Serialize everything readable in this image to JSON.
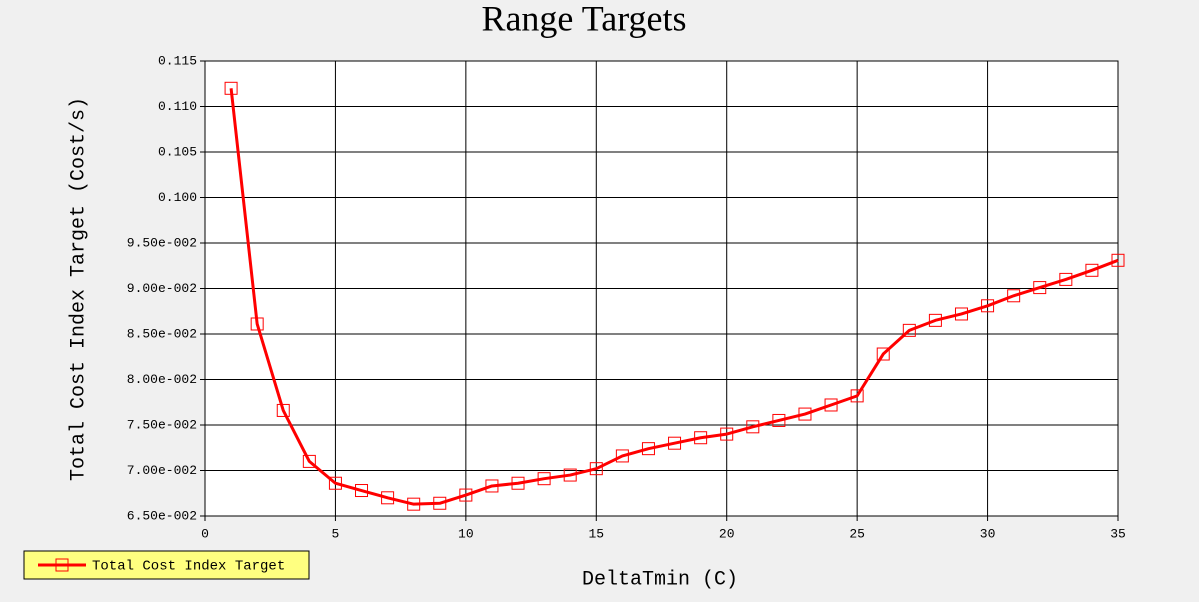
{
  "chart_data": {
    "type": "line",
    "title": "Range Targets",
    "x_label": "DeltaTmin (C)",
    "y_label": "Total Cost Index Target (Cost/s)",
    "x": [
      1,
      2,
      3,
      4,
      5,
      6,
      7,
      8,
      9,
      10,
      11,
      12,
      13,
      14,
      15,
      16,
      17,
      18,
      19,
      20,
      21,
      22,
      23,
      24,
      25,
      26,
      27,
      28,
      29,
      30,
      31,
      32,
      33,
      34,
      35
    ],
    "series": [
      {
        "name": "Total Cost Index Target",
        "color": "#ff0000",
        "values": [
          0.112,
          0.0861,
          0.0766,
          0.071,
          0.0686,
          0.0678,
          0.067,
          0.0663,
          0.0664,
          0.0673,
          0.0683,
          0.0686,
          0.0691,
          0.0695,
          0.0702,
          0.0716,
          0.0724,
          0.073,
          0.0736,
          0.074,
          0.0748,
          0.0755,
          0.0762,
          0.0772,
          0.0782,
          0.0828,
          0.0854,
          0.0865,
          0.0872,
          0.0881,
          0.0892,
          0.0901,
          0.091,
          0.092,
          0.0931
        ]
      }
    ],
    "xlim": [
      0,
      35
    ],
    "xticks": [
      0,
      5,
      10,
      15,
      20,
      25,
      30,
      35
    ],
    "ylim": [
      0.065,
      0.115
    ],
    "yticks": [
      {
        "value": 0.065,
        "label": "6.50e-002"
      },
      {
        "value": 0.07,
        "label": "7.00e-002"
      },
      {
        "value": 0.075,
        "label": "7.50e-002"
      },
      {
        "value": 0.08,
        "label": "8.00e-002"
      },
      {
        "value": 0.085,
        "label": "8.50e-002"
      },
      {
        "value": 0.09,
        "label": "9.00e-002"
      },
      {
        "value": 0.095,
        "label": "9.50e-002"
      },
      {
        "value": 0.1,
        "label": "0.100"
      },
      0.105,
      {
        "value": 0.11,
        "label": "0.110"
      },
      0.115
    ],
    "grid": true,
    "legend": "bottom-left",
    "legend_color": "#ffff80"
  }
}
